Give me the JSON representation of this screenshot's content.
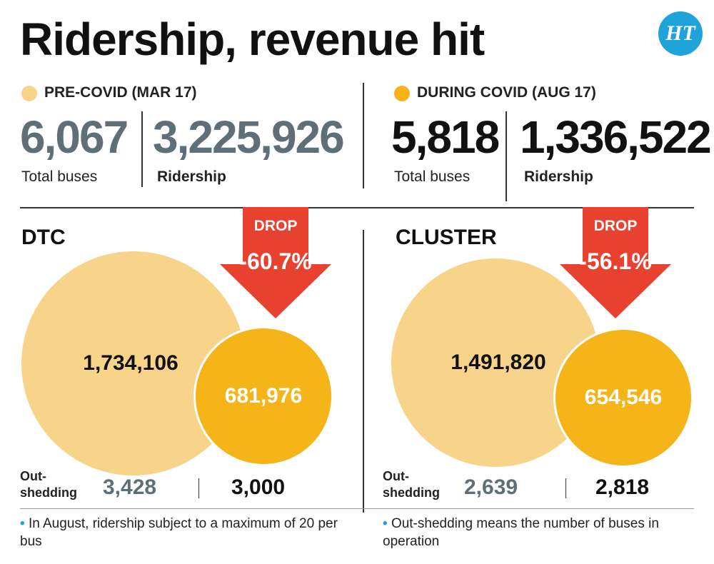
{
  "title": "Ridership, revenue hit",
  "logo_text": "HT",
  "colors": {
    "pre": "#f8d48a",
    "during": "#f5b418",
    "arrow": "#e8412f",
    "grey_text": "#5e6f78",
    "logo": "#1fa3d9"
  },
  "pre_covid": {
    "label": "PRE-COVID (MAR 17)",
    "buses": "6,067",
    "buses_label": "Total buses",
    "ridership": "3,225,926",
    "ridership_label": "Ridership"
  },
  "during_covid": {
    "label": "DURING COVID (AUG 17)",
    "buses": "5,818",
    "buses_label": "Total buses",
    "ridership": "1,336,522",
    "ridership_label": "Ridership"
  },
  "dtc": {
    "name": "DTC",
    "drop_label": "DROP",
    "drop_value": "-60.7%",
    "pre_value": "1,734,106",
    "during_value": "681,976",
    "outshedding_label_1": "Out-",
    "outshedding_label_2": "shedding",
    "outshedding_pre": "3,428",
    "outshedding_during": "3,000"
  },
  "cluster": {
    "name": "CLUSTER",
    "drop_label": "DROP",
    "drop_value": "-56.1%",
    "pre_value": "1,491,820",
    "during_value": "654,546",
    "outshedding_label_1": "Out-",
    "outshedding_label_2": "shedding",
    "outshedding_pre": "2,639",
    "outshedding_during": "2,818"
  },
  "notes": [
    "In August, ridership subject to a maximum of 20 per bus",
    "Out-shedding means the number of buses in operation"
  ],
  "chart_data": [
    {
      "type": "bubble",
      "title": "DTC",
      "categories": [
        "Pre-Covid (Mar 17)",
        "During Covid (Aug 17)"
      ],
      "values": [
        1734106,
        681976
      ],
      "drop_percent": -60.7,
      "outshedding": [
        3428,
        3000
      ]
    },
    {
      "type": "bubble",
      "title": "CLUSTER",
      "categories": [
        "Pre-Covid (Mar 17)",
        "During Covid (Aug 17)"
      ],
      "values": [
        1491820,
        654546
      ],
      "drop_percent": -56.1,
      "outshedding": [
        2639,
        2818
      ]
    }
  ]
}
